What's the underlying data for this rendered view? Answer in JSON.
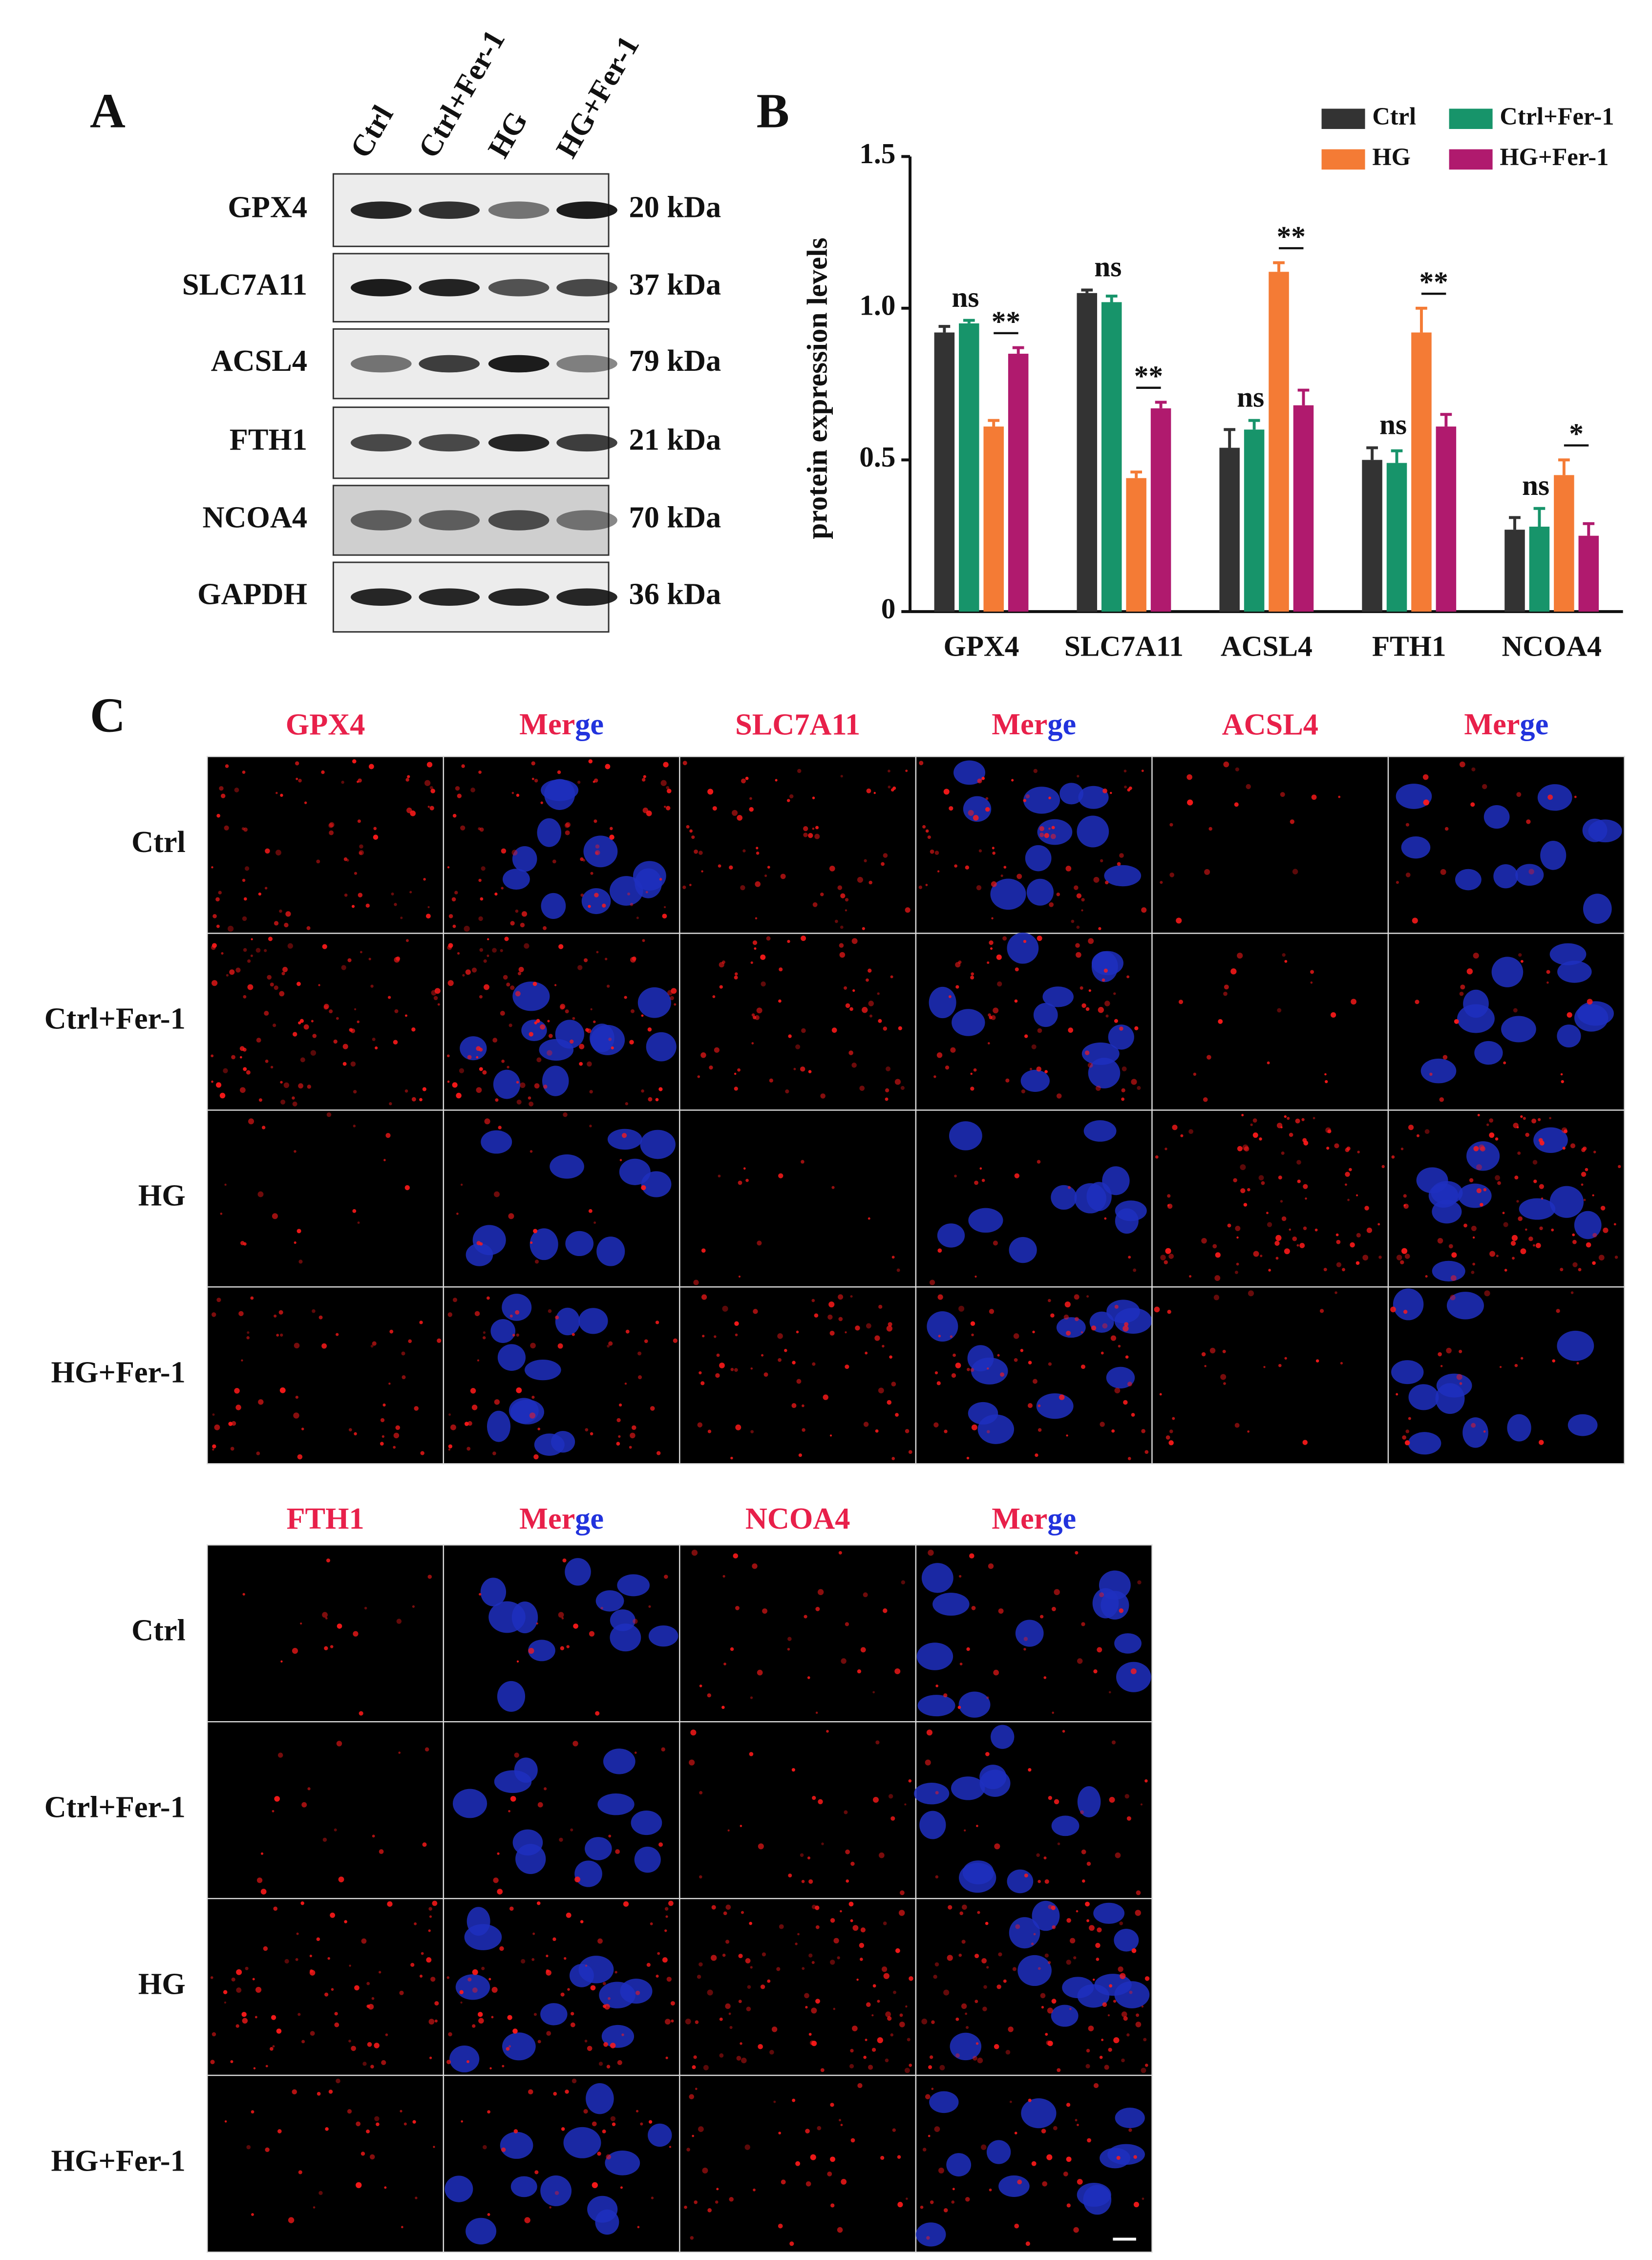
{
  "panel_labels": [
    "A",
    "B",
    "C"
  ],
  "western_blot": {
    "lanes": [
      "Ctrl",
      "Ctrl+Fer-1",
      "HG",
      "HG+Fer-1"
    ],
    "rows": [
      {
        "protein": "GPX4",
        "size": "20 kDa"
      },
      {
        "protein": "SLC7A11",
        "size": "37 kDa"
      },
      {
        "protein": "ACSL4",
        "size": "79 kDa"
      },
      {
        "protein": "FTH1",
        "size": "21 kDa"
      },
      {
        "protein": "NCOA4",
        "size": "70 kDa"
      },
      {
        "protein": "GAPDH",
        "size": "36 kDa"
      }
    ]
  },
  "chart_data": {
    "type": "bar",
    "y_label": "protein expression levels",
    "categories": [
      "GPX4",
      "SLC7A11",
      "ACSL4",
      "FTH1",
      "NCOA4"
    ],
    "series": [
      {
        "name": "Ctrl",
        "color": "#333333",
        "values": [
          0.92,
          1.05,
          0.54,
          0.5,
          0.27
        ],
        "errors": [
          0.02,
          0.01,
          0.06,
          0.04,
          0.04
        ]
      },
      {
        "name": "Ctrl+Fer-1",
        "color": "#17946a",
        "values": [
          0.95,
          1.02,
          0.6,
          0.49,
          0.28
        ],
        "errors": [
          0.01,
          0.02,
          0.03,
          0.04,
          0.06
        ]
      },
      {
        "name": "HG",
        "color": "#f47b35",
        "values": [
          0.61,
          0.44,
          1.12,
          0.92,
          0.45
        ],
        "errors": [
          0.02,
          0.02,
          0.03,
          0.08,
          0.05
        ]
      },
      {
        "name": "HG+Fer-1",
        "color": "#b01a6e",
        "values": [
          0.85,
          0.67,
          0.68,
          0.61,
          0.25
        ],
        "errors": [
          0.02,
          0.02,
          0.05,
          0.04,
          0.04
        ]
      }
    ],
    "significance": {
      "control": [
        "ns",
        "ns",
        "ns",
        "ns",
        "ns"
      ],
      "treatment": [
        "**",
        "**",
        "**",
        "**",
        "*"
      ]
    },
    "ylim": [
      0,
      1.5
    ],
    "yticks": [
      0,
      0.5,
      {
        "value": 1,
        "label": "1.0"
      },
      1.5
    ],
    "legend": "top-right"
  },
  "immunofluorescence": {
    "blocks": [
      {
        "columns": [
          "GPX4",
          "Merge",
          "SLC7A11",
          "Merge",
          "ACSL4",
          "Merge"
        ],
        "rows": [
          "Ctrl",
          "Ctrl+Fer-1",
          "HG",
          "HG+Fer-1"
        ]
      },
      {
        "columns": [
          "FTH1",
          "Merge",
          "NCOA4",
          "Merge"
        ],
        "rows": [
          "Ctrl",
          "Ctrl+Fer-1",
          "HG",
          "HG+Fer-1"
        ]
      }
    ]
  }
}
